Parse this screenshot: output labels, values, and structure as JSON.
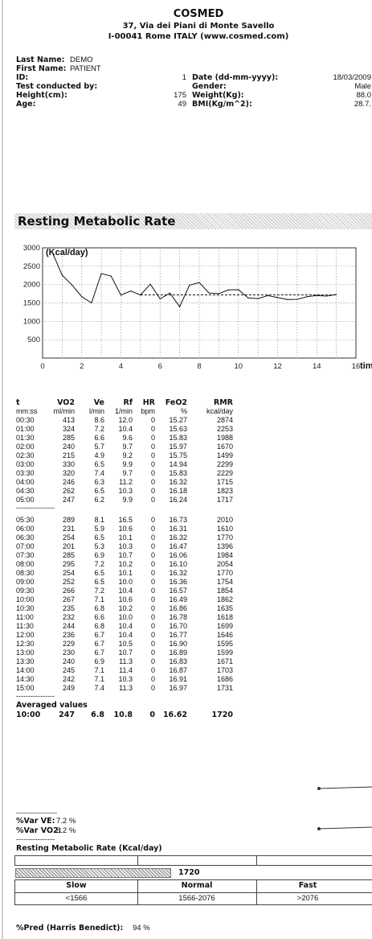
{
  "header": {
    "company": "COSMED",
    "address1": "37, Via dei Piani di Monte Savello",
    "address2": "I-00041 Rome ITALY (www.cosmed.com)"
  },
  "patient": {
    "last_name_label": "Last Name:",
    "last_name": "DEMO",
    "first_name_label": "First Name:",
    "first_name": "PATIENT",
    "id_label": "ID:",
    "id": "1",
    "test_by_label": "Test conducted by:",
    "height_label": "Height(cm):",
    "height": "175",
    "age_label": "Age:",
    "age": "49",
    "date_label": "Date (dd-mm-yyyy):",
    "date": "18/03/2009",
    "gender_label": "Gender:",
    "gender": "Male",
    "weight_label": "Weight(Kg):",
    "weight": "88.0",
    "bmi_label": "BMI(Kg/m^2):",
    "bmi": "28.7."
  },
  "section_title": "Resting Metabolic Rate",
  "chart_data": {
    "type": "line",
    "ylabel": "(Kcal/day)",
    "xlabel": "time(min)",
    "xlim": [
      0,
      16
    ],
    "ylim": [
      0,
      3000
    ],
    "x_ticks": [
      "0",
      "2",
      "4",
      "6",
      "8",
      "10",
      "12",
      "14",
      "16"
    ],
    "y_ticks": [
      "500",
      "1000",
      "1500",
      "2000",
      "2500",
      "3000"
    ],
    "grid": true,
    "x": [
      0.5,
      1.0,
      1.5,
      2.0,
      2.5,
      3.0,
      3.5,
      4.0,
      4.5,
      5.0,
      5.5,
      6.0,
      6.5,
      7.0,
      7.5,
      8.0,
      8.5,
      9.0,
      9.5,
      10.0,
      10.5,
      11.0,
      11.5,
      12.0,
      12.5,
      13.0,
      13.5,
      14.0,
      14.5,
      15.0
    ],
    "values": [
      2874,
      2253,
      1988,
      1670,
      1499,
      2299,
      2229,
      1715,
      1823,
      1717,
      2010,
      1610,
      1770,
      1396,
      1984,
      2054,
      1770,
      1754,
      1854,
      1862,
      1635,
      1618,
      1699,
      1646,
      1595,
      1599,
      1671,
      1703,
      1686,
      1731
    ],
    "average_line": {
      "x": [
        5.0,
        15.0
      ],
      "y": 1720
    }
  },
  "table": {
    "columns": [
      "t",
      "VO2",
      "Ve",
      "Rf",
      "HR",
      "FeO2",
      "RMR"
    ],
    "units": [
      "mm:ss",
      "ml/min",
      "l/min",
      "1/min",
      "bpm",
      "%",
      "kcal/day"
    ],
    "rows_a": [
      [
        "00:30",
        "413",
        "8.6",
        "12.0",
        "0",
        "15.27",
        "2874"
      ],
      [
        "01:00",
        "324",
        "7.2",
        "10.4",
        "0",
        "15.63",
        "2253"
      ],
      [
        "01:30",
        "285",
        "6.6",
        "9.6",
        "0",
        "15.83",
        "1988"
      ],
      [
        "02:00",
        "240",
        "5.7",
        "9.7",
        "0",
        "15.97",
        "1670"
      ],
      [
        "02:30",
        "215",
        "4.9",
        "9.2",
        "0",
        "15.75",
        "1499"
      ],
      [
        "03:00",
        "330",
        "6.5",
        "9.9",
        "0",
        "14.94",
        "2299"
      ],
      [
        "03:30",
        "320",
        "7.4",
        "9.7",
        "0",
        "15.83",
        "2229"
      ],
      [
        "04:00",
        "246",
        "6.3",
        "11.2",
        "0",
        "16.32",
        "1715"
      ],
      [
        "04:30",
        "262",
        "6.5",
        "10.3",
        "0",
        "16.18",
        "1823"
      ],
      [
        "05:00",
        "247",
        "6.2",
        "9.9",
        "0",
        "16.24",
        "1717"
      ]
    ],
    "rows_b": [
      [
        "05:30",
        "289",
        "8.1",
        "16.5",
        "0",
        "16.73",
        "2010"
      ],
      [
        "06:00",
        "231",
        "5.9",
        "10.6",
        "0",
        "16.31",
        "1610"
      ],
      [
        "06:30",
        "254",
        "6.5",
        "10.1",
        "0",
        "16.32",
        "1770"
      ],
      [
        "07:00",
        "201",
        "5.3",
        "10.3",
        "0",
        "16.47",
        "1396"
      ],
      [
        "07:30",
        "285",
        "6.9",
        "10.7",
        "0",
        "16.06",
        "1984"
      ],
      [
        "08:00",
        "295",
        "7.2",
        "10.2",
        "0",
        "16.10",
        "2054"
      ],
      [
        "08:30",
        "254",
        "6.5",
        "10.1",
        "0",
        "16.32",
        "1770"
      ],
      [
        "09:00",
        "252",
        "6.5",
        "10.0",
        "0",
        "16.36",
        "1754"
      ],
      [
        "09:30",
        "266",
        "7.2",
        "10.4",
        "0",
        "16.57",
        "1854"
      ],
      [
        "10:00",
        "267",
        "7.1",
        "10.6",
        "0",
        "16.49",
        "1862"
      ],
      [
        "10:30",
        "235",
        "6.8",
        "10.2",
        "0",
        "16.86",
        "1635"
      ],
      [
        "11:00",
        "232",
        "6.6",
        "10.0",
        "0",
        "16.78",
        "1618"
      ],
      [
        "11:30",
        "244",
        "6.8",
        "10.4",
        "0",
        "16.70",
        "1699"
      ],
      [
        "12:00",
        "236",
        "6.7",
        "10.4",
        "0",
        "16.77",
        "1646"
      ],
      [
        "12:30",
        "229",
        "6.7",
        "10.5",
        "0",
        "16.90",
        "1595"
      ],
      [
        "13:00",
        "230",
        "6.7",
        "10.7",
        "0",
        "16.89",
        "1599"
      ],
      [
        "13:30",
        "240",
        "6.9",
        "11.3",
        "0",
        "16.83",
        "1671"
      ],
      [
        "14:00",
        "245",
        "7.1",
        "11.4",
        "0",
        "16.87",
        "1703"
      ],
      [
        "14:30",
        "242",
        "7.1",
        "10.3",
        "0",
        "16.91",
        "1686"
      ],
      [
        "15:00",
        "249",
        "7.4",
        "11.3",
        "0",
        "16.97",
        "1731"
      ]
    ],
    "separator": "----------------",
    "averaged_label": "Averaged values",
    "averaged": [
      "10:00",
      "247",
      "6.8",
      "10.8",
      "0",
      "16.62",
      "1720"
    ]
  },
  "variability": {
    "separator_top": "-----------------",
    "var_ve_label": "%Var VE:",
    "var_ve": "7.2 %",
    "var_vo2_label": "%Var VO2:",
    "var_vo2": "5.2 %",
    "separator_bottom": "----------------"
  },
  "rmr_summary": {
    "title": "Resting Metabolic Rate (Kcal/day)",
    "value": "1720",
    "categories": [
      {
        "label": "Slow",
        "range": "<1566"
      },
      {
        "label": "Normal",
        "range": "1566-2076"
      },
      {
        "label": "Fast",
        "range": ">2076"
      }
    ]
  },
  "prediction": {
    "label": "%Pred (Harris Benedict):",
    "value": "94 %"
  }
}
